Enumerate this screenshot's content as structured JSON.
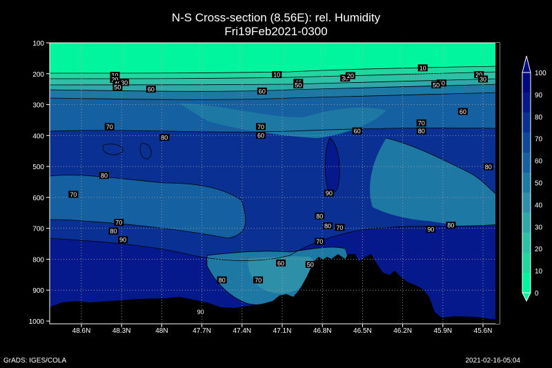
{
  "chart_data": {
    "type": "heatmap",
    "title": "N-S Cross-section (8.56E): rel. Humidity",
    "subtitle": "Fri19Feb2021-0300",
    "xlabel": "",
    "ylabel": "",
    "x_ticks": [
      "48.6N",
      "48.3N",
      "48N",
      "47.7N",
      "47.4N",
      "47.1N",
      "46.8N",
      "46.5N",
      "46.2N",
      "45.9N",
      "45.6N"
    ],
    "y_ticks": [
      "100",
      "200",
      "300",
      "400",
      "500",
      "600",
      "700",
      "800",
      "900",
      "1000"
    ],
    "ylim": [
      1000,
      100
    ],
    "grid": true,
    "colorbar": {
      "levels": [
        "0",
        "10",
        "20",
        "30",
        "40",
        "50",
        "60",
        "70",
        "80",
        "90",
        "100"
      ],
      "colors": [
        "#00f59e",
        "#1fd8a0",
        "#2cc0a4",
        "#2ea8a8",
        "#2e90a8",
        "#1e78a4",
        "#1560a0",
        "#0f489a",
        "#0a3094",
        "#05188c",
        "#000880"
      ]
    },
    "contour_labels": [
      {
        "text": "10",
        "lat": 48.35,
        "p": 205
      },
      {
        "text": "20",
        "lat": 48.35,
        "p": 218
      },
      {
        "text": "40",
        "lat": 48.33,
        "p": 232
      },
      {
        "text": "30",
        "lat": 48.28,
        "p": 228
      },
      {
        "text": "50",
        "lat": 48.33,
        "p": 243
      },
      {
        "text": "60",
        "lat": 48.08,
        "p": 250
      },
      {
        "text": "10",
        "lat": 47.14,
        "p": 203
      },
      {
        "text": "40",
        "lat": 46.98,
        "p": 228
      },
      {
        "text": "50",
        "lat": 46.98,
        "p": 236
      },
      {
        "text": "30",
        "lat": 46.63,
        "p": 214
      },
      {
        "text": "20",
        "lat": 46.59,
        "p": 206
      },
      {
        "text": "60",
        "lat": 47.25,
        "p": 256
      },
      {
        "text": "10",
        "lat": 46.05,
        "p": 181
      },
      {
        "text": "40",
        "lat": 45.91,
        "p": 230
      },
      {
        "text": "50",
        "lat": 45.95,
        "p": 236
      },
      {
        "text": "20",
        "lat": 45.63,
        "p": 203
      },
      {
        "text": "30",
        "lat": 45.6,
        "p": 217
      },
      {
        "text": "60",
        "lat": 45.75,
        "p": 322
      },
      {
        "text": "70",
        "lat": 48.39,
        "p": 371
      },
      {
        "text": "80",
        "lat": 47.98,
        "p": 406
      },
      {
        "text": "70",
        "lat": 47.26,
        "p": 371
      },
      {
        "text": "60",
        "lat": 47.26,
        "p": 399
      },
      {
        "text": "60",
        "lat": 46.54,
        "p": 385
      },
      {
        "text": "70",
        "lat": 46.06,
        "p": 359
      },
      {
        "text": "80",
        "lat": 46.06,
        "p": 385
      },
      {
        "text": "80",
        "lat": 48.43,
        "p": 529
      },
      {
        "text": "70",
        "lat": 48.66,
        "p": 590
      },
      {
        "text": "80",
        "lat": 45.56,
        "p": 501
      },
      {
        "text": "90",
        "lat": 46.75,
        "p": 586
      },
      {
        "text": "80",
        "lat": 46.82,
        "p": 660
      },
      {
        "text": "80",
        "lat": 46.76,
        "p": 692
      },
      {
        "text": "70",
        "lat": 46.67,
        "p": 697
      },
      {
        "text": "70",
        "lat": 48.32,
        "p": 681
      },
      {
        "text": "80",
        "lat": 48.36,
        "p": 709
      },
      {
        "text": "90",
        "lat": 48.29,
        "p": 737
      },
      {
        "text": "90",
        "lat": 45.99,
        "p": 703
      },
      {
        "text": "80",
        "lat": 45.84,
        "p": 690
      },
      {
        "text": "70",
        "lat": 46.82,
        "p": 742
      },
      {
        "text": "60",
        "lat": 47.11,
        "p": 812
      },
      {
        "text": "50",
        "lat": 46.89,
        "p": 817
      },
      {
        "text": "80",
        "lat": 47.55,
        "p": 867
      },
      {
        "text": "70",
        "lat": 47.28,
        "p": 867
      },
      {
        "text": "90",
        "lat": 47.71,
        "p": 970
      }
    ]
  },
  "footer": {
    "left": "GrADS: IGES/COLA",
    "right": "2021-02-16-05:04"
  }
}
